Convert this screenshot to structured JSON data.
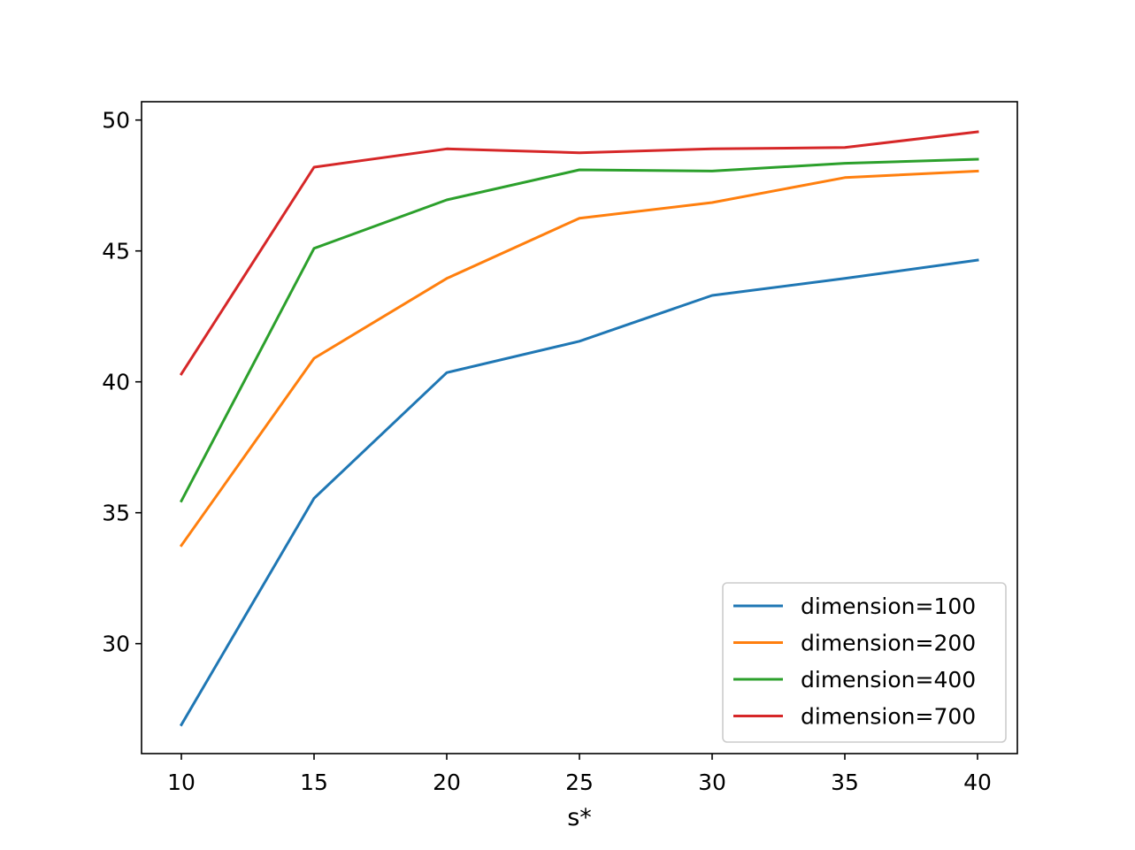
{
  "chart_data": {
    "type": "line",
    "xlabel": "s*",
    "ylabel": "",
    "title": "",
    "x": [
      10,
      15,
      20,
      25,
      30,
      35,
      40
    ],
    "xlim": [
      8.5,
      41.5
    ],
    "ylim": [
      25.8,
      50.7
    ],
    "xticks": [
      "10",
      "15",
      "20",
      "25",
      "30",
      "35",
      "40"
    ],
    "yticks": [
      "30",
      "35",
      "40",
      "45",
      "50"
    ],
    "grid": false,
    "legend_position": "lower right",
    "series": [
      {
        "name": "dimension=100",
        "color": "#1f77b4",
        "values": [
          26.9,
          35.55,
          40.35,
          41.55,
          43.3,
          43.95,
          44.65
        ]
      },
      {
        "name": "dimension=200",
        "color": "#ff7f0e",
        "values": [
          33.75,
          40.9,
          43.95,
          46.25,
          46.85,
          47.8,
          48.05
        ]
      },
      {
        "name": "dimension=400",
        "color": "#2ca02c",
        "values": [
          35.45,
          45.1,
          46.95,
          48.1,
          48.05,
          48.35,
          48.5
        ]
      },
      {
        "name": "dimension=700",
        "color": "#d62728",
        "values": [
          40.3,
          48.2,
          48.9,
          48.75,
          48.9,
          48.95,
          49.55
        ]
      }
    ]
  }
}
